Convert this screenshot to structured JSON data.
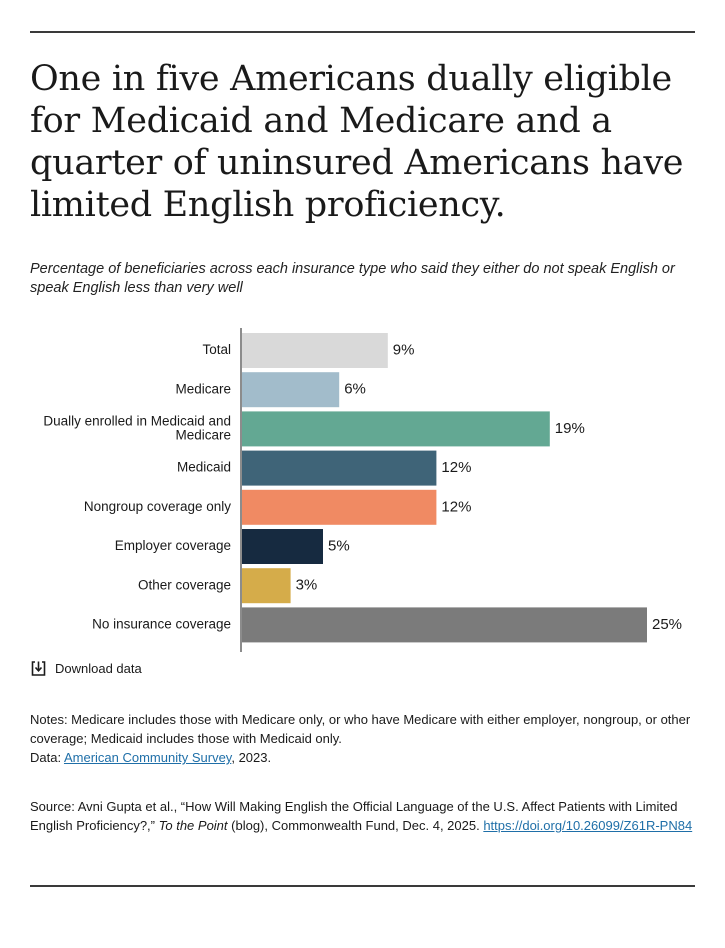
{
  "header": {
    "title": "One in five Americans dually eligible for Medicaid and Medicare and a quarter of uninsured Americans have limited English proficiency.",
    "subtitle": "Percentage of beneficiaries across each insurance type who said they either do not speak English or speak English less than very well"
  },
  "chart_data": {
    "type": "bar",
    "orientation": "horizontal",
    "categories": [
      "Total",
      "Medicare",
      "Dually enrolled in Medicaid and Medicare",
      "Medicaid",
      "Nongroup coverage only",
      "Employer coverage",
      "Other coverage",
      "No insurance coverage"
    ],
    "category_lines": [
      [
        "Total"
      ],
      [
        "Medicare"
      ],
      [
        "Dually enrolled in Medicaid and",
        "Medicare"
      ],
      [
        "Medicaid"
      ],
      [
        "Nongroup coverage only"
      ],
      [
        "Employer coverage"
      ],
      [
        "Other coverage"
      ],
      [
        "No insurance coverage"
      ]
    ],
    "values": [
      9,
      6,
      19,
      12,
      12,
      5,
      3,
      25
    ],
    "value_labels": [
      "9%",
      "6%",
      "19%",
      "12%",
      "12%",
      "5%",
      "3%",
      "25%"
    ],
    "colors": [
      "#d9d9d9",
      "#a2bccb",
      "#63a893",
      "#3f6478",
      "#f08a63",
      "#162a40",
      "#d5ac4a",
      "#7b7b7b"
    ],
    "xlim": [
      0,
      25
    ],
    "grid": false,
    "legend": "none",
    "xlabel": "",
    "ylabel": ""
  },
  "download": {
    "label": "Download data",
    "icon": "download-icon"
  },
  "notes": {
    "text": "Notes: Medicare includes those with Medicare only, or who have Medicare with either employer, nongroup, or other coverage; Medicaid includes those with Medicaid only.",
    "data_prefix": "Data: ",
    "data_link": "American Community Survey",
    "data_suffix": ", 2023."
  },
  "source": {
    "prefix": "Source: Avni Gupta et al., “How Will Making English the Official Language of the U.S. Affect Patients with Limited English Proficiency?,” ",
    "italic": "To the Point",
    "middle": " (blog), Commonwealth Fund, Dec. 4, 2025. ",
    "link": "https://doi.org/10.26099/Z61R-PN84"
  }
}
